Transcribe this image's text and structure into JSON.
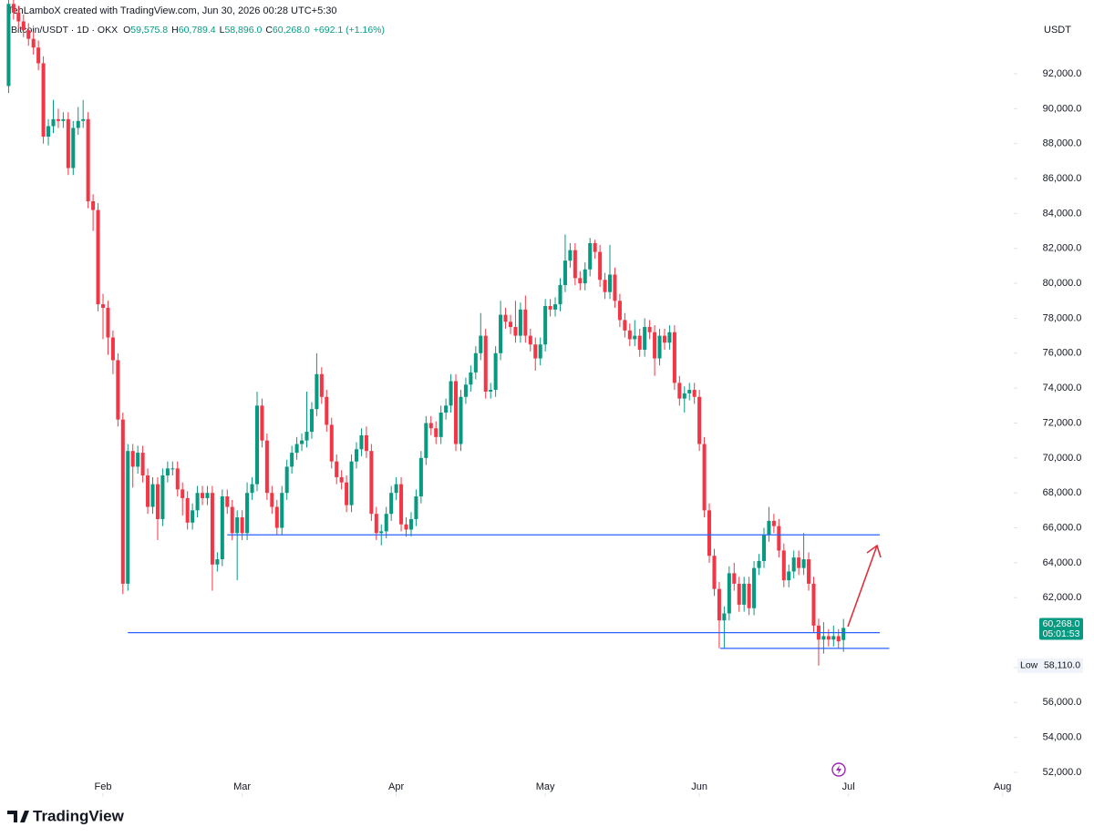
{
  "chart_data": {
    "type": "candlestick",
    "credit": "TehLamboX created with TradingView.com, Jun 30, 2026 00:28 UTC+5:30",
    "symbol": "Bitcoin/USDT · 1D · OKX",
    "ohlc_legend": [
      {
        "label": "O",
        "value": "59,575.8"
      },
      {
        "label": "H",
        "value": "60,789.4"
      },
      {
        "label": "L",
        "value": "58,896.0"
      },
      {
        "label": "C",
        "value": "60,268.0"
      }
    ],
    "change": "+692.1 (+1.16%)",
    "currency": "USDT",
    "brand": "TradingView",
    "up_color": "#089981",
    "down_color": "#f23645",
    "level_color": "#2962ff",
    "open": [
      91300,
      96000,
      95500,
      95000,
      94500,
      94000,
      93500,
      92600,
      88400,
      89000,
      89400,
      89300,
      89400,
      86600,
      88900,
      89300,
      89400,
      84700,
      84200,
      78800,
      78600,
      76900,
      75600,
      72200,
      62800,
      70400,
      69500,
      70300,
      69000,
      67200,
      68500,
      66500,
      69000,
      69400,
      69400,
      68200,
      67700,
      66300,
      67000,
      68000,
      67700,
      68000,
      63900,
      64200,
      67800,
      67200,
      65700,
      66600,
      65700,
      68000,
      68500,
      73000,
      71000,
      68000,
      67200,
      66000,
      68000,
      69500,
      70300,
      70800,
      71000,
      71500,
      72800,
      74800,
      73500,
      71900,
      69800,
      68900,
      68600,
      67300,
      69800,
      70500,
      71300,
      70400,
      66800,
      65700,
      65800,
      66800,
      68000,
      68500,
      66200,
      65900,
      66500,
      67800,
      70000,
      72000,
      71700,
      71200,
      72600,
      73000,
      74400,
      70800,
      73500,
      74200,
      74900,
      76000,
      77000,
      73800,
      73900,
      76000,
      78200,
      77800,
      77500,
      77000,
      78500,
      77000,
      76500,
      75700,
      76500,
      78700,
      78500,
      78800,
      79900,
      81300,
      81900,
      80300,
      80000,
      80800,
      82300,
      81800,
      80200,
      79500,
      80500,
      79000,
      77900,
      77300,
      76800,
      77000,
      76200,
      77500,
      77200,
      75700,
      77000,
      76600,
      77200,
      74300,
      73400,
      73700,
      73900,
      73500,
      70800,
      67000,
      64400,
      62500,
      60700,
      61100,
      63400,
      62800,
      61600,
      62800,
      61400,
      63700,
      64100,
      65600,
      66400,
      66100,
      64700,
      63000,
      63500,
      64300,
      63700,
      64200,
      62800,
      60400,
      59600,
      59800,
      59600,
      59800,
      59575.8
    ],
    "high": [
      96300,
      96300,
      95900,
      95400,
      94900,
      94400,
      93900,
      93000,
      89400,
      90500,
      90000,
      89800,
      89800,
      89300,
      90100,
      90500,
      89800,
      85100,
      84600,
      79400,
      79000,
      77300,
      76000,
      72600,
      70800,
      70800,
      70700,
      70700,
      69400,
      68900,
      68900,
      69400,
      69800,
      69800,
      69800,
      68600,
      68100,
      67400,
      68400,
      68400,
      68400,
      68400,
      64600,
      68200,
      68200,
      67600,
      67000,
      67000,
      68600,
      68900,
      73800,
      73400,
      71400,
      68400,
      67600,
      68400,
      69900,
      70700,
      71200,
      71400,
      73800,
      73200,
      76000,
      75200,
      73900,
      72300,
      70200,
      69300,
      69000,
      70200,
      70900,
      71700,
      71800,
      70800,
      67200,
      66200,
      67200,
      68400,
      68900,
      68900,
      66600,
      66900,
      68200,
      70400,
      72400,
      72400,
      72100,
      73000,
      73400,
      74800,
      74800,
      73900,
      74600,
      75300,
      76400,
      78300,
      77400,
      74300,
      76400,
      79000,
      78600,
      78200,
      79000,
      78900,
      79300,
      77400,
      76900,
      76900,
      79100,
      79100,
      79200,
      80300,
      82800,
      82300,
      82300,
      80700,
      81200,
      82600,
      82500,
      82200,
      80600,
      82200,
      80900,
      79400,
      78300,
      77700,
      77900,
      77400,
      78000,
      77900,
      77600,
      77400,
      77400,
      77600,
      77600,
      74700,
      74100,
      74300,
      74300,
      73900,
      71200,
      67400,
      64800,
      62900,
      61500,
      63800,
      64000,
      63200,
      63200,
      63200,
      64100,
      64500,
      66000,
      67200,
      66800,
      66500,
      65100,
      63900,
      64700,
      64700,
      65700,
      64600,
      63200,
      60800,
      60600,
      60200,
      60400,
      60200,
      60789.4
    ],
    "low": [
      90900,
      95100,
      94600,
      94100,
      93600,
      93100,
      92200,
      88000,
      87900,
      88600,
      88900,
      88900,
      86200,
      86200,
      88500,
      88900,
      84300,
      83000,
      78400,
      76800,
      75900,
      74800,
      71800,
      62200,
      62400,
      68300,
      69100,
      68600,
      66800,
      66800,
      65300,
      66100,
      68600,
      69000,
      67800,
      66700,
      65900,
      65900,
      66600,
      67300,
      67300,
      62400,
      63500,
      63800,
      66800,
      65300,
      63000,
      65300,
      65300,
      67600,
      68100,
      70600,
      67600,
      66800,
      65600,
      65600,
      67600,
      69100,
      69900,
      70400,
      70600,
      71100,
      72400,
      73100,
      71500,
      69400,
      68500,
      68200,
      66900,
      66900,
      69400,
      70100,
      70000,
      66400,
      65300,
      65000,
      65400,
      66400,
      67600,
      65800,
      65500,
      65500,
      66100,
      67400,
      69600,
      71300,
      70800,
      70800,
      72200,
      72600,
      70400,
      70400,
      73100,
      73800,
      74500,
      75600,
      73400,
      73400,
      73500,
      75600,
      77400,
      77100,
      76600,
      76600,
      76600,
      76100,
      75000,
      75300,
      76100,
      78100,
      78100,
      78400,
      79500,
      80900,
      79900,
      79600,
      79600,
      80400,
      81400,
      79800,
      79100,
      79100,
      78600,
      77500,
      76900,
      76400,
      76400,
      75800,
      75800,
      76800,
      74700,
      75300,
      76200,
      76200,
      73900,
      73000,
      72600,
      73300,
      73100,
      70400,
      66600,
      64000,
      62100,
      59100,
      59100,
      60700,
      62400,
      61200,
      61200,
      61000,
      61000,
      63300,
      63700,
      65200,
      65700,
      64300,
      62600,
      62600,
      63100,
      63300,
      63300,
      62400,
      60000,
      58110,
      58800,
      59200,
      59200,
      59100,
      58896.0
    ],
    "close": [
      96000,
      95500,
      95000,
      94500,
      94000,
      93500,
      92600,
      88400,
      89000,
      89400,
      89300,
      89400,
      86600,
      88900,
      89300,
      89400,
      84700,
      84200,
      78800,
      78600,
      76900,
      75600,
      72200,
      62800,
      70400,
      69500,
      70300,
      69000,
      67200,
      68500,
      66500,
      69000,
      69400,
      69400,
      68200,
      67700,
      66300,
      67000,
      68000,
      67700,
      68000,
      63900,
      64200,
      67800,
      67200,
      65700,
      66600,
      65700,
      68000,
      68500,
      73000,
      71000,
      68000,
      67200,
      66000,
      68000,
      69500,
      70300,
      70800,
      71000,
      71500,
      72800,
      74800,
      73500,
      71900,
      69800,
      68900,
      68600,
      67300,
      69800,
      70500,
      71300,
      70400,
      66800,
      65700,
      65800,
      66800,
      68000,
      68500,
      66200,
      65900,
      66500,
      67800,
      70000,
      72000,
      71700,
      71200,
      72600,
      73000,
      74400,
      70800,
      73500,
      74200,
      74900,
      76000,
      77000,
      73800,
      73900,
      76000,
      78200,
      77800,
      77500,
      77000,
      78500,
      77000,
      76500,
      75700,
      76500,
      78700,
      78500,
      78800,
      79900,
      81300,
      81900,
      80300,
      80000,
      80800,
      82300,
      81800,
      80200,
      79500,
      80500,
      79000,
      77900,
      77300,
      76800,
      77000,
      76200,
      77500,
      77200,
      75700,
      77000,
      76600,
      77200,
      74300,
      73400,
      73700,
      73900,
      73500,
      70800,
      67000,
      64400,
      62500,
      60700,
      61100,
      63400,
      62800,
      61600,
      62800,
      61400,
      63700,
      64100,
      65600,
      66400,
      66100,
      64700,
      63000,
      63500,
      64300,
      63700,
      64200,
      62800,
      60400,
      59600,
      59800,
      59600,
      59800,
      59500,
      60268.0
    ],
    "xlim": [
      -1.73,
      201.9
    ],
    "xticks": [
      {
        "value": 19,
        "label": "Feb"
      },
      {
        "value": 47,
        "label": "Mar"
      },
      {
        "value": 78,
        "label": "Apr"
      },
      {
        "value": 108,
        "label": "May"
      },
      {
        "value": 139,
        "label": "Jun"
      },
      {
        "value": 169,
        "label": "Jul"
      },
      {
        "value": 200,
        "label": "Aug"
      }
    ],
    "ylim": [
      50592,
      96224
    ],
    "yticks": [
      {
        "value": 52000,
        "label": "52,000.0"
      },
      {
        "value": 54000,
        "label": "54,000.0"
      },
      {
        "value": 56000,
        "label": "56,000.0"
      },
      {
        "value": 58000,
        "label": "58,000.0"
      },
      {
        "value": 62000,
        "label": "62,000.0"
      },
      {
        "value": 64000,
        "label": "64,000.0"
      },
      {
        "value": 66000,
        "label": "66,000.0"
      },
      {
        "value": 68000,
        "label": "68,000.0"
      },
      {
        "value": 70000,
        "label": "70,000.0"
      },
      {
        "value": 72000,
        "label": "72,000.0"
      },
      {
        "value": 74000,
        "label": "74,000.0"
      },
      {
        "value": 76000,
        "label": "76,000.0"
      },
      {
        "value": 78000,
        "label": "78,000.0"
      },
      {
        "value": 80000,
        "label": "80,000.0"
      },
      {
        "value": 82000,
        "label": "82,000.0"
      },
      {
        "value": 84000,
        "label": "84,000.0"
      },
      {
        "value": 86000,
        "label": "86,000.0"
      },
      {
        "value": 88000,
        "label": "88,000.0"
      },
      {
        "value": 90000,
        "label": "90,000.0"
      },
      {
        "value": 92000,
        "label": "92,000.0"
      }
    ],
    "levels": [
      {
        "value": 65600,
        "x": [
          44,
          175.3
        ]
      },
      {
        "value": 60000,
        "x": [
          24,
          175.3
        ]
      },
      {
        "value": 59100,
        "x": [
          143.2,
          177.2
        ]
      }
    ],
    "last_price": {
      "value": 60268.0,
      "label": "60,268.0"
    },
    "countdown": "05:01:53",
    "low_marker": {
      "text": "Low",
      "value": 58110,
      "label": "58,110.0"
    }
  }
}
